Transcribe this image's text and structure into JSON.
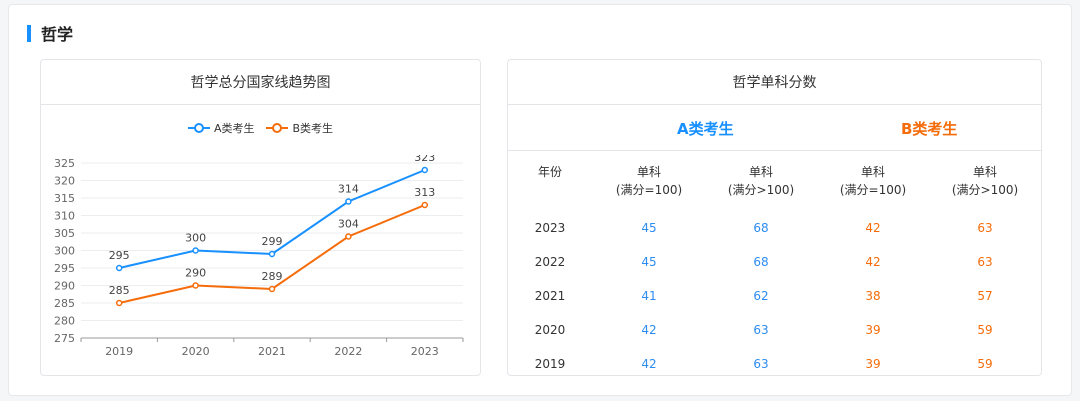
{
  "section": {
    "title": "哲学"
  },
  "chart_card": {
    "title": "哲学总分国家线趋势图",
    "legend": [
      {
        "label": "A类考生",
        "color": "#1890ff"
      },
      {
        "label": "B类考生",
        "color": "#f56c0a"
      }
    ]
  },
  "chart_data": {
    "type": "line",
    "title": "哲学总分国家线趋势图",
    "categories": [
      "2019",
      "2020",
      "2021",
      "2022",
      "2023"
    ],
    "series": [
      {
        "name": "A类考生",
        "color": "#1890ff",
        "values": [
          295,
          300,
          299,
          314,
          323
        ]
      },
      {
        "name": "B类考生",
        "color": "#f56c0a",
        "values": [
          285,
          290,
          289,
          304,
          313
        ]
      }
    ],
    "ylim": [
      275,
      325
    ],
    "yticks": [
      275,
      280,
      285,
      290,
      295,
      300,
      305,
      310,
      315,
      320,
      325
    ],
    "grid": true,
    "legend_position": "top"
  },
  "table_card": {
    "title": "哲学单科分数",
    "category_a": "A类考生",
    "category_b": "B类考生",
    "headers": {
      "year": "年份",
      "c1": [
        "单科",
        "(满分=100)"
      ],
      "c2": [
        "单科",
        "(满分>100)"
      ],
      "c3": [
        "单科",
        "(满分=100)"
      ],
      "c4": [
        "单科",
        "(满分>100)"
      ]
    },
    "rows": [
      [
        "2023",
        "45",
        "68",
        "42",
        "63"
      ],
      [
        "2022",
        "45",
        "68",
        "42",
        "63"
      ],
      [
        "2021",
        "41",
        "62",
        "38",
        "57"
      ],
      [
        "2020",
        "42",
        "63",
        "39",
        "59"
      ],
      [
        "2019",
        "42",
        "63",
        "39",
        "59"
      ]
    ]
  }
}
